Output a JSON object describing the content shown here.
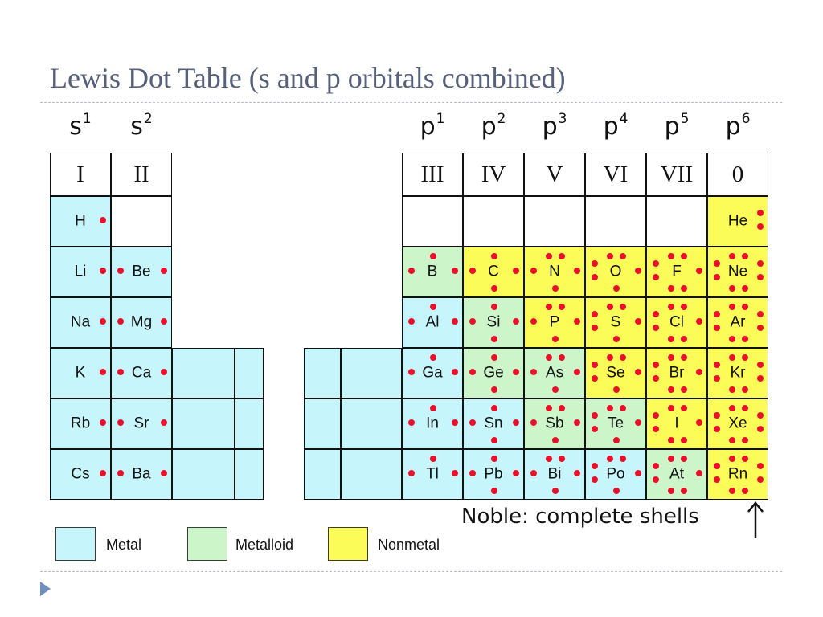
{
  "title": "Lewis Dot Table (s and p orbitals combined)",
  "orbitals": [
    {
      "base": "s",
      "sup": "1"
    },
    {
      "base": "s",
      "sup": "2"
    },
    {
      "base": "p",
      "sup": "1"
    },
    {
      "base": "p",
      "sup": "2"
    },
    {
      "base": "p",
      "sup": "3"
    },
    {
      "base": "p",
      "sup": "4"
    },
    {
      "base": "p",
      "sup": "5"
    },
    {
      "base": "p",
      "sup": "6"
    }
  ],
  "groups": [
    "I",
    "II",
    "III",
    "IV",
    "V",
    "VI",
    "VII",
    "0"
  ],
  "elements": [
    {
      "symbol": "H",
      "period": 1,
      "group": "I",
      "category": "metal",
      "electrons": 1
    },
    {
      "symbol": "He",
      "period": 1,
      "group": "0",
      "category": "nonmetal",
      "electrons": 2
    },
    {
      "symbol": "Li",
      "period": 2,
      "group": "I",
      "category": "metal",
      "electrons": 1
    },
    {
      "symbol": "Be",
      "period": 2,
      "group": "II",
      "category": "metal",
      "electrons": 2
    },
    {
      "symbol": "B",
      "period": 2,
      "group": "III",
      "category": "metalloid",
      "electrons": 3
    },
    {
      "symbol": "C",
      "period": 2,
      "group": "IV",
      "category": "nonmetal",
      "electrons": 4
    },
    {
      "symbol": "N",
      "period": 2,
      "group": "V",
      "category": "nonmetal",
      "electrons": 5
    },
    {
      "symbol": "O",
      "period": 2,
      "group": "VI",
      "category": "nonmetal",
      "electrons": 6
    },
    {
      "symbol": "F",
      "period": 2,
      "group": "VII",
      "category": "nonmetal",
      "electrons": 7
    },
    {
      "symbol": "Ne",
      "period": 2,
      "group": "0",
      "category": "nonmetal",
      "electrons": 8
    },
    {
      "symbol": "Na",
      "period": 3,
      "group": "I",
      "category": "metal",
      "electrons": 1
    },
    {
      "symbol": "Mg",
      "period": 3,
      "group": "II",
      "category": "metal",
      "electrons": 2
    },
    {
      "symbol": "Al",
      "period": 3,
      "group": "III",
      "category": "metal",
      "electrons": 3
    },
    {
      "symbol": "Si",
      "period": 3,
      "group": "IV",
      "category": "metalloid",
      "electrons": 4
    },
    {
      "symbol": "P",
      "period": 3,
      "group": "V",
      "category": "nonmetal",
      "electrons": 5
    },
    {
      "symbol": "S",
      "period": 3,
      "group": "VI",
      "category": "nonmetal",
      "electrons": 6
    },
    {
      "symbol": "Cl",
      "period": 3,
      "group": "VII",
      "category": "nonmetal",
      "electrons": 7
    },
    {
      "symbol": "Ar",
      "period": 3,
      "group": "0",
      "category": "nonmetal",
      "electrons": 8
    },
    {
      "symbol": "K",
      "period": 4,
      "group": "I",
      "category": "metal",
      "electrons": 1
    },
    {
      "symbol": "Ca",
      "period": 4,
      "group": "II",
      "category": "metal",
      "electrons": 2
    },
    {
      "symbol": "Ga",
      "period": 4,
      "group": "III",
      "category": "metal",
      "electrons": 3
    },
    {
      "symbol": "Ge",
      "period": 4,
      "group": "IV",
      "category": "metalloid",
      "electrons": 4
    },
    {
      "symbol": "As",
      "period": 4,
      "group": "V",
      "category": "metalloid",
      "electrons": 5
    },
    {
      "symbol": "Se",
      "period": 4,
      "group": "VI",
      "category": "nonmetal",
      "electrons": 6
    },
    {
      "symbol": "Br",
      "period": 4,
      "group": "VII",
      "category": "nonmetal",
      "electrons": 7
    },
    {
      "symbol": "Kr",
      "period": 4,
      "group": "0",
      "category": "nonmetal",
      "electrons": 8
    },
    {
      "symbol": "Rb",
      "period": 5,
      "group": "I",
      "category": "metal",
      "electrons": 1
    },
    {
      "symbol": "Sr",
      "period": 5,
      "group": "II",
      "category": "metal",
      "electrons": 2
    },
    {
      "symbol": "In",
      "period": 5,
      "group": "III",
      "category": "metal",
      "electrons": 3
    },
    {
      "symbol": "Sn",
      "period": 5,
      "group": "IV",
      "category": "metal",
      "electrons": 4
    },
    {
      "symbol": "Sb",
      "period": 5,
      "group": "V",
      "category": "metalloid",
      "electrons": 5
    },
    {
      "symbol": "Te",
      "period": 5,
      "group": "VI",
      "category": "metalloid",
      "electrons": 6
    },
    {
      "symbol": "I",
      "period": 5,
      "group": "VII",
      "category": "nonmetal",
      "electrons": 7
    },
    {
      "symbol": "Xe",
      "period": 5,
      "group": "0",
      "category": "nonmetal",
      "electrons": 8
    },
    {
      "symbol": "Cs",
      "period": 6,
      "group": "I",
      "category": "metal",
      "electrons": 1
    },
    {
      "symbol": "Ba",
      "period": 6,
      "group": "II",
      "category": "metal",
      "electrons": 2
    },
    {
      "symbol": "Tl",
      "period": 6,
      "group": "III",
      "category": "metal",
      "electrons": 3
    },
    {
      "symbol": "Pb",
      "period": 6,
      "group": "IV",
      "category": "metal",
      "electrons": 4
    },
    {
      "symbol": "Bi",
      "period": 6,
      "group": "V",
      "category": "metal",
      "electrons": 5
    },
    {
      "symbol": "Po",
      "period": 6,
      "group": "VI",
      "category": "metal",
      "electrons": 6
    },
    {
      "symbol": "At",
      "period": 6,
      "group": "VII",
      "category": "metalloid",
      "electrons": 7
    },
    {
      "symbol": "Rn",
      "period": 6,
      "group": "0",
      "category": "nonmetal",
      "electrons": 8
    }
  ],
  "legend": [
    {
      "key": "metal",
      "label": "Metal",
      "color": "#c6f6fc"
    },
    {
      "key": "metalloid",
      "label": "Metalloid",
      "color": "#ccf6ca"
    },
    {
      "key": "nonmetal",
      "label": "Nonmetal",
      "color": "#fcfc59"
    }
  ],
  "note": "Noble:  complete shells",
  "colors": {
    "dot": "#e8112b",
    "metal": "#c6f6fc",
    "metalloid": "#ccf6ca",
    "nonmetal": "#fcfc59",
    "title": "#56607a"
  }
}
